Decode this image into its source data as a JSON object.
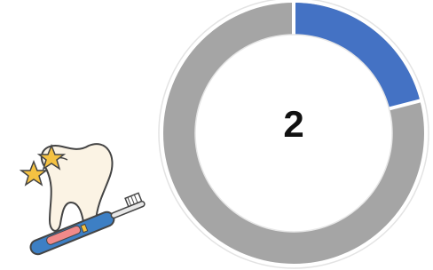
{
  "timer": {
    "label": "2",
    "progress_percent": 21,
    "track_color": "#a5a5a5",
    "progress_color": "#4472c4"
  }
}
